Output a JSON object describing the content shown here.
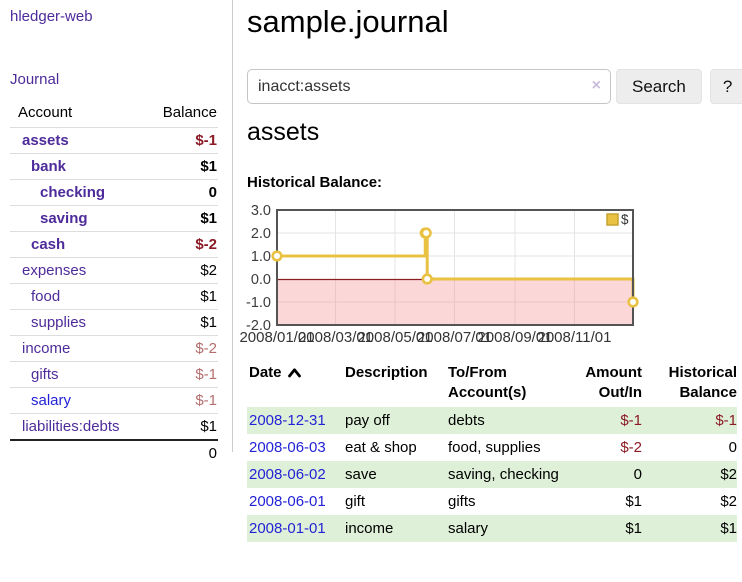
{
  "colors": {
    "link_purple": "#4e2b9a",
    "link_blue": "#2323d6",
    "negative_strong": "#8b1a24",
    "negative_soft": "#b56d6d",
    "row_green": "#dff0d8",
    "series_gold": "#e9c143",
    "gold_border": "#c9a233",
    "negative_region_pink": "#fbdcdc",
    "zero_line_red": "#8b1f1f",
    "clear_icon_lavender": "#c8bddc"
  },
  "sidebar": {
    "app_title": "hledger-web",
    "journal_link": "Journal",
    "table": {
      "headers": {
        "account": "Account",
        "balance": "Balance"
      },
      "rows": [
        {
          "name": "assets",
          "indent": 0,
          "bold": true,
          "muted": false,
          "balance": "$-1"
        },
        {
          "name": "bank",
          "indent": 1,
          "bold": true,
          "muted": false,
          "balance": "$1"
        },
        {
          "name": "checking",
          "indent": 2,
          "bold": true,
          "muted": false,
          "balance": "0"
        },
        {
          "name": "saving",
          "indent": 2,
          "bold": true,
          "muted": false,
          "balance": "$1"
        },
        {
          "name": "cash",
          "indent": 1,
          "bold": true,
          "muted": false,
          "balance": "$-2"
        },
        {
          "name": "expenses",
          "indent": 0,
          "bold": false,
          "muted": false,
          "balance": "$2"
        },
        {
          "name": "food",
          "indent": 1,
          "bold": false,
          "muted": false,
          "balance": "$1"
        },
        {
          "name": "supplies",
          "indent": 1,
          "bold": false,
          "muted": false,
          "balance": "$1"
        },
        {
          "name": "income",
          "indent": 0,
          "bold": false,
          "muted": true,
          "balance": "$-2"
        },
        {
          "name": "gifts",
          "indent": 1,
          "bold": false,
          "muted": true,
          "balance": "$-1"
        },
        {
          "name": "salary",
          "indent": 1,
          "bold": false,
          "muted": true,
          "blue": true,
          "balance": "$-1"
        },
        {
          "name": "liabilities:debts",
          "indent": 0,
          "bold": false,
          "muted": false,
          "balance": "$1"
        }
      ],
      "total": "0"
    }
  },
  "main": {
    "title": "sample.journal",
    "search": {
      "value": "inacct:assets",
      "clear_icon": "×",
      "button_label": "Search",
      "help_label": "?"
    },
    "account_heading": "assets",
    "chart_label": "Historical Balance:"
  },
  "chart_data": {
    "type": "line",
    "title": "Historical Balance:",
    "style": "step-after",
    "grid": true,
    "legend_position": "top-right",
    "ylim": [
      -2,
      3
    ],
    "x_range": [
      "2008-01-01",
      "2008-12-31"
    ],
    "y_ticks": [
      {
        "value": 3,
        "label": "3.0"
      },
      {
        "value": 2,
        "label": "2.0"
      },
      {
        "value": 1,
        "label": "1.0"
      },
      {
        "value": 0,
        "label": "0.0"
      },
      {
        "value": -1,
        "label": "-1.0"
      },
      {
        "value": -2,
        "label": "-2.0"
      }
    ],
    "x_ticks": [
      {
        "value": "2008-01-01",
        "label": "2008/01/01"
      },
      {
        "value": "2008-03-01",
        "label": "2008/03/01"
      },
      {
        "value": "2008-05-01",
        "label": "2008/05/01"
      },
      {
        "value": "2008-07-01",
        "label": "2008/07/01"
      },
      {
        "value": "2008-09-01",
        "label": "2008/09/01"
      },
      {
        "value": "2008-11-01",
        "label": "2008/11/01"
      }
    ],
    "series": [
      {
        "name": "$",
        "marker": "open-circle",
        "points": [
          [
            "2008-01-01",
            1
          ],
          [
            "2008-06-01",
            2
          ],
          [
            "2008-06-02",
            2
          ],
          [
            "2008-06-03",
            0
          ],
          [
            "2008-12-31",
            -1
          ]
        ]
      }
    ],
    "negative_region_shaded": true
  },
  "register": {
    "headers": {
      "date": "Date",
      "description": "Description",
      "accounts": "To/From Account(s)",
      "amount": "Amount Out/In",
      "balance": "Historical Balance"
    },
    "rows": [
      {
        "date": "2008-12-31",
        "description": "pay off",
        "accounts": "debts",
        "amount": "$-1",
        "balance": "$-1"
      },
      {
        "date": "2008-06-03",
        "description": "eat & shop",
        "accounts": "food, supplies",
        "amount": "$-2",
        "balance": "0"
      },
      {
        "date": "2008-06-02",
        "description": "save",
        "accounts": "saving, checking",
        "amount": "0",
        "balance": "$2"
      },
      {
        "date": "2008-06-01",
        "description": "gift",
        "accounts": "gifts",
        "amount": "$1",
        "balance": "$2"
      },
      {
        "date": "2008-01-01",
        "description": "income",
        "accounts": "salary",
        "amount": "$1",
        "balance": "$1"
      }
    ]
  }
}
